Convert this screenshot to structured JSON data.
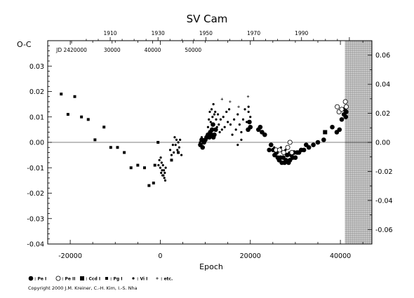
{
  "chart_data": {
    "type": "scatter",
    "title": "SV Cam",
    "xlabel": "Epoch",
    "ylabel": "O-C",
    "xlim": [
      -25000,
      47000
    ],
    "ylim": [
      -0.04,
      0.04
    ],
    "x_ticks": [
      "-20000",
      "0",
      "20000",
      "40000"
    ],
    "y_ticks": [
      "0.03",
      "0.02",
      "0.01",
      "0.00",
      "-0.01",
      "-0.02",
      "-0.03",
      "-0.04"
    ],
    "right_y_ticks": [
      "0.06",
      "0.04",
      "0.02",
      "0.00",
      "-0.02",
      "-0.04",
      "-0.06"
    ],
    "top_year_ticks": [
      "1910",
      "1930",
      "1950",
      "1970",
      "1990"
    ],
    "top_jd_ticks": [
      "JD 2420000",
      "30000",
      "40000",
      "50000"
    ],
    "shaded_region_start_epoch": 41000,
    "grid": false,
    "series": [
      {
        "name": ": Pe I",
        "marker": "filled-circle",
        "points": [
          [
            8900,
            -0.001
          ],
          [
            9200,
            0.001
          ],
          [
            9400,
            -0.002
          ],
          [
            9700,
            0.0
          ],
          [
            10000,
            0.001
          ],
          [
            10300,
            0.002
          ],
          [
            10600,
            0.003
          ],
          [
            10900,
            0.002
          ],
          [
            11100,
            0.004
          ],
          [
            11300,
            0.003
          ],
          [
            11500,
            0.005
          ],
          [
            11800,
            0.002
          ],
          [
            12000,
            0.003
          ],
          [
            12300,
            0.005
          ],
          [
            11700,
            0.007
          ],
          [
            19500,
            0.005
          ],
          [
            19800,
            0.008
          ],
          [
            20000,
            0.006
          ],
          [
            21800,
            0.005
          ],
          [
            22200,
            0.006
          ],
          [
            22600,
            0.004
          ],
          [
            23200,
            0.003
          ],
          [
            24200,
            -0.003
          ],
          [
            24600,
            -0.001
          ],
          [
            25100,
            -0.003
          ],
          [
            25400,
            -0.005
          ],
          [
            25800,
            -0.004
          ],
          [
            26100,
            -0.006
          ],
          [
            26400,
            -0.007
          ],
          [
            26700,
            -0.006
          ],
          [
            27000,
            -0.008
          ],
          [
            27300,
            -0.006
          ],
          [
            27600,
            -0.008
          ],
          [
            27900,
            -0.007
          ],
          [
            28200,
            -0.005
          ],
          [
            28500,
            -0.008
          ],
          [
            28800,
            -0.007
          ],
          [
            29100,
            -0.005
          ],
          [
            29400,
            -0.006
          ],
          [
            29700,
            -0.004
          ],
          [
            30000,
            -0.006
          ],
          [
            30400,
            -0.004
          ],
          [
            30800,
            -0.004
          ],
          [
            31300,
            -0.003
          ],
          [
            31900,
            -0.003
          ],
          [
            32400,
            -0.001
          ],
          [
            33000,
            -0.002
          ],
          [
            34000,
            -0.001
          ],
          [
            35000,
            0.0
          ],
          [
            36300,
            0.001
          ],
          [
            38200,
            0.006
          ],
          [
            39200,
            0.004
          ],
          [
            39800,
            0.005
          ],
          [
            40300,
            0.009
          ],
          [
            40800,
            0.011
          ],
          [
            41200,
            0.01
          ],
          [
            40900,
            0.013
          ],
          [
            41300,
            0.012
          ]
        ]
      },
      {
        "name": ": Pe II",
        "marker": "open-circle",
        "points": [
          [
            25700,
            -0.003
          ],
          [
            26500,
            -0.003
          ],
          [
            27400,
            -0.004
          ],
          [
            28300,
            -0.002
          ],
          [
            28800,
            0.0
          ],
          [
            29200,
            -0.004
          ],
          [
            39300,
            0.014
          ],
          [
            39700,
            0.012
          ],
          [
            40300,
            0.013
          ],
          [
            41100,
            0.016
          ],
          [
            41300,
            0.014
          ]
        ]
      },
      {
        "name": ": Ccd I",
        "marker": "filled-square",
        "points": [
          [
            36600,
            0.004
          ]
        ]
      },
      {
        "name": ": Pg I",
        "marker": "small-square",
        "points": [
          [
            -22000,
            0.019
          ],
          [
            -20500,
            0.011
          ],
          [
            -19000,
            0.018
          ],
          [
            -17500,
            0.01
          ],
          [
            -16000,
            0.009
          ],
          [
            -14500,
            0.001
          ],
          [
            -12500,
            0.006
          ],
          [
            -11000,
            -0.002
          ],
          [
            -9500,
            -0.002
          ],
          [
            -8000,
            -0.004
          ],
          [
            -6500,
            -0.01
          ],
          [
            -5000,
            -0.009
          ],
          [
            -3500,
            -0.01
          ],
          [
            -2500,
            -0.017
          ],
          [
            -1500,
            -0.016
          ],
          [
            -1200,
            -0.009
          ],
          [
            -500,
            0.0
          ],
          [
            2500,
            -0.007
          ],
          [
            4000,
            -0.004
          ]
        ]
      },
      {
        "name": ": Vi I",
        "marker": "dot",
        "points": [
          [
            -400,
            -0.009
          ],
          [
            -200,
            -0.007
          ],
          [
            0,
            -0.01
          ],
          [
            100,
            -0.006
          ],
          [
            200,
            -0.012
          ],
          [
            300,
            -0.008
          ],
          [
            400,
            -0.011
          ],
          [
            500,
            -0.013
          ],
          [
            600,
            -0.009
          ],
          [
            700,
            -0.013
          ],
          [
            800,
            -0.011
          ],
          [
            900,
            -0.014
          ],
          [
            1000,
            -0.012
          ],
          [
            1100,
            -0.015
          ],
          [
            1200,
            -0.01
          ],
          [
            2200,
            -0.003
          ],
          [
            2500,
            -0.005
          ],
          [
            2800,
            -0.001
          ],
          [
            3000,
            -0.004
          ],
          [
            3200,
            0.002
          ],
          [
            3400,
            -0.001
          ],
          [
            3600,
            0.001
          ],
          [
            3800,
            -0.003
          ],
          [
            4000,
            0.0
          ],
          [
            4200,
            -0.002
          ],
          [
            4400,
            0.001
          ],
          [
            4700,
            -0.005
          ],
          [
            8800,
            0.0
          ],
          [
            9200,
            0.002
          ],
          [
            10600,
            0.006
          ],
          [
            10800,
            0.009
          ],
          [
            11000,
            0.012
          ],
          [
            11200,
            0.008
          ],
          [
            11400,
            0.013
          ],
          [
            11600,
            0.01
          ],
          [
            11800,
            0.015
          ],
          [
            12000,
            0.011
          ],
          [
            12200,
            0.012
          ],
          [
            12400,
            0.009
          ],
          [
            12600,
            0.006
          ],
          [
            12800,
            0.011
          ],
          [
            13000,
            0.007
          ],
          [
            13200,
            0.004
          ],
          [
            13400,
            0.009
          ],
          [
            13700,
            0.005
          ],
          [
            14000,
            0.01
          ],
          [
            14300,
            0.006
          ],
          [
            14700,
            0.012
          ],
          [
            15000,
            0.008
          ],
          [
            15300,
            0.013
          ],
          [
            15600,
            0.007
          ],
          [
            16000,
            0.003
          ],
          [
            16400,
            0.009
          ],
          [
            16800,
            0.005
          ],
          [
            17200,
            0.011
          ],
          [
            17600,
            0.007
          ],
          [
            18000,
            0.004
          ],
          [
            18400,
            0.009
          ],
          [
            18800,
            0.013
          ],
          [
            19200,
            0.008
          ],
          [
            19600,
            0.012
          ],
          [
            20000,
            0.01
          ],
          [
            17200,
            -0.001
          ],
          [
            18000,
            0.001
          ],
          [
            19600,
            0.014
          ],
          [
            25300,
            -0.002
          ],
          [
            26000,
            -0.004
          ],
          [
            26800,
            -0.002
          ],
          [
            27800,
            -0.003
          ],
          [
            28600,
            -0.004
          ]
        ]
      },
      {
        "name": ": etc.",
        "marker": "star",
        "points": [
          [
            13700,
            0.017
          ],
          [
            15500,
            0.016
          ],
          [
            19500,
            0.018
          ],
          [
            17400,
            0.014
          ]
        ]
      }
    ]
  },
  "copyright": "Copyright 2000 J.M. Kreiner, C.-H. Kim, I.-S. Nha"
}
